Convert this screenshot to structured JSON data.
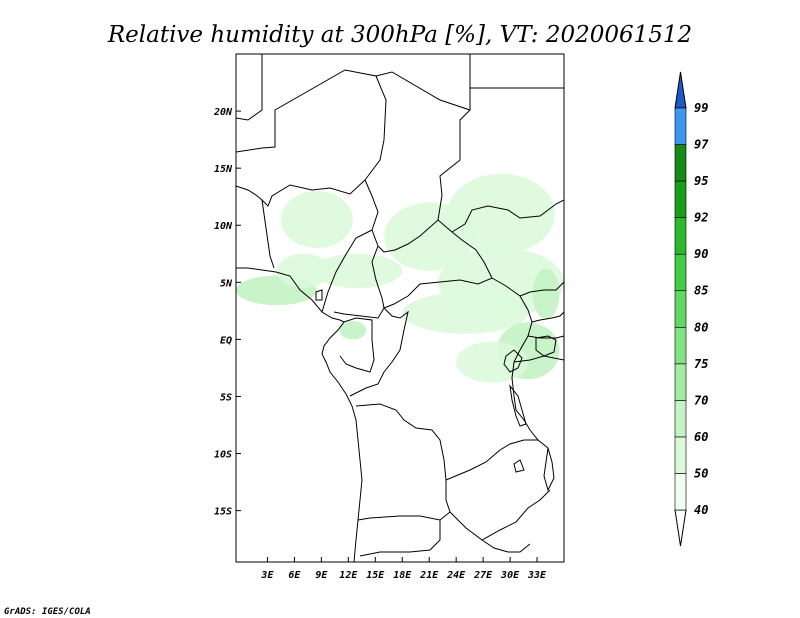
{
  "title": "Relative humidity at 300hPa [%], VT: 2020061512",
  "credit": "GrADS: IGES/COLA",
  "map": {
    "lon_range": [
      -0.5,
      36
    ],
    "lat_range": [
      -19.5,
      25
    ],
    "x_ticks": [
      {
        "lon": 3,
        "label": "3E"
      },
      {
        "lon": 6,
        "label": "6E"
      },
      {
        "lon": 9,
        "label": "9E"
      },
      {
        "lon": 12,
        "label": "12E"
      },
      {
        "lon": 15,
        "label": "15E"
      },
      {
        "lon": 18,
        "label": "18E"
      },
      {
        "lon": 21,
        "label": "21E"
      },
      {
        "lon": 24,
        "label": "24E"
      },
      {
        "lon": 27,
        "label": "27E"
      },
      {
        "lon": 30,
        "label": "30E"
      },
      {
        "lon": 33,
        "label": "33E"
      }
    ],
    "y_ticks": [
      {
        "lat": 20,
        "label": "20N"
      },
      {
        "lat": 15,
        "label": "15N"
      },
      {
        "lat": 10,
        "label": "10N"
      },
      {
        "lat": 5,
        "label": "5N"
      },
      {
        "lat": 0,
        "label": "EQ"
      },
      {
        "lat": -5,
        "label": "5S"
      },
      {
        "lat": -10,
        "label": "10S"
      },
      {
        "lat": -15,
        "label": "15S"
      }
    ],
    "humidity_patches": [
      {
        "lon": 8.5,
        "lat": 10.5,
        "rx": 4,
        "ry": 2.5,
        "level": 50
      },
      {
        "lon": 4,
        "lat": 4.3,
        "rx": 4.5,
        "ry": 1.3,
        "level": 60
      },
      {
        "lon": 7,
        "lat": 6,
        "rx": 3,
        "ry": 1.5,
        "level": 50
      },
      {
        "lon": 13,
        "lat": 6,
        "rx": 5,
        "ry": 1.5,
        "level": 50
      },
      {
        "lon": 21,
        "lat": 9,
        "rx": 5,
        "ry": 3,
        "level": 50
      },
      {
        "lon": 29,
        "lat": 11,
        "rx": 6,
        "ry": 3.5,
        "level": 50
      },
      {
        "lon": 29,
        "lat": 5,
        "rx": 7,
        "ry": 3,
        "level": 50
      },
      {
        "lon": 25,
        "lat": 2.3,
        "rx": 7,
        "ry": 1.8,
        "level": 50
      },
      {
        "lon": 32,
        "lat": -1,
        "rx": 3.5,
        "ry": 2.5,
        "level": 60
      },
      {
        "lon": 28,
        "lat": -2,
        "rx": 4,
        "ry": 1.8,
        "level": 50
      },
      {
        "lon": 34,
        "lat": 4,
        "rx": 1.5,
        "ry": 2.2,
        "level": 60
      },
      {
        "lon": 12.5,
        "lat": 0.8,
        "rx": 1.5,
        "ry": 0.8,
        "level": 60
      }
    ]
  },
  "colorbar": {
    "levels": [
      {
        "label": "40",
        "color": "#f0fff0"
      },
      {
        "label": "50",
        "color": "#dcf9dc"
      },
      {
        "label": "60",
        "color": "#c3f3c3"
      },
      {
        "label": "70",
        "color": "#a3eba3"
      },
      {
        "label": "75",
        "color": "#84e284"
      },
      {
        "label": "80",
        "color": "#62d862"
      },
      {
        "label": "85",
        "color": "#43cc43"
      },
      {
        "label": "90",
        "color": "#2cb82c"
      },
      {
        "label": "92",
        "color": "#1a9e1a"
      },
      {
        "label": "95",
        "color": "#158a15"
      },
      {
        "label": "97",
        "color": "#3f96f0"
      },
      {
        "label": "99",
        "color": "#2a70dc"
      }
    ],
    "low_color": "#ffffff",
    "top_color": "#1c5ac8"
  }
}
